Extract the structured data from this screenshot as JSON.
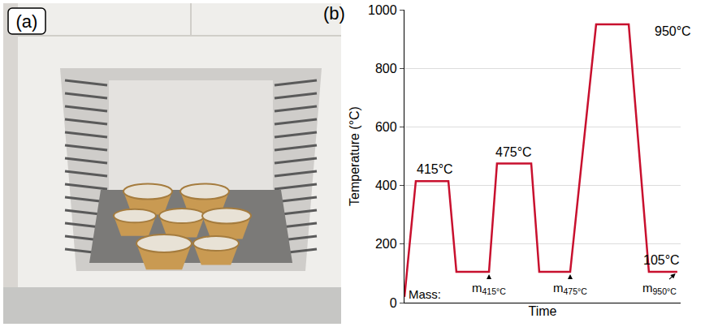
{
  "photo": {
    "label": "(a)"
  },
  "chart_data": {
    "type": "line",
    "label": "(b)",
    "x": [
      0,
      4.1,
      15.9,
      18.8,
      30.6,
      33.5,
      45.9,
      48.8,
      60.0,
      69.4,
      81.2,
      88.5,
      98.8
    ],
    "values": [
      20,
      415,
      415,
      105,
      105,
      475,
      475,
      105,
      105,
      950,
      950,
      105,
      105
    ],
    "color": "#c8102e",
    "xlim": [
      0,
      100
    ],
    "ylim": [
      0,
      1000
    ],
    "yticks": [
      0,
      200,
      400,
      600,
      800,
      1000
    ],
    "xlabel": "Time",
    "ylabel": "Temperature (°C)",
    "grid": true,
    "tick_labels": "y",
    "annotations": [
      {
        "text": "415°C",
        "x": 11,
        "y": 415
      },
      {
        "text": "475°C",
        "x": 39.5,
        "y": 475
      },
      {
        "text": "950°C",
        "x": 90,
        "y": 950
      },
      {
        "text": "105°C",
        "x": 93,
        "y": 105
      }
    ],
    "mass_label": {
      "text": "Mass:",
      "x": 1,
      "y": 30
    },
    "mass_markers": [
      {
        "base": "m",
        "subscript": "415°C",
        "x": 30.6,
        "y": 105
      },
      {
        "base": "m",
        "subscript": "475°C",
        "x": 60.0,
        "y": 105
      },
      {
        "base": "m",
        "subscript": "950°C",
        "x": 98.8,
        "y": 105
      }
    ]
  }
}
